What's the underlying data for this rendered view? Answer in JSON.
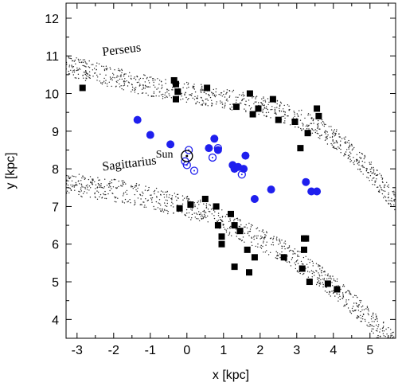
{
  "chart_data": {
    "type": "scatter",
    "title": "",
    "xlabel": "x [kpc]",
    "ylabel": "y [kpc]",
    "xlim": [
      -3.3,
      5.7
    ],
    "ylim": [
      3.5,
      12.4
    ],
    "xticks": [
      -3,
      -2,
      -1,
      0,
      1,
      2,
      3,
      4,
      5
    ],
    "yticks": [
      4,
      5,
      6,
      7,
      8,
      9,
      10,
      11,
      12
    ],
    "grid": false,
    "legend": "none",
    "annotations": [
      {
        "text": "Perseus",
        "x": -2.3,
        "y": 11.0
      },
      {
        "text": "Sagittarius",
        "x": -2.3,
        "y": 7.95
      },
      {
        "text": "Sun",
        "x": -0.85,
        "y": 8.3
      }
    ],
    "sun": {
      "x": 0.0,
      "y": 8.34
    },
    "spiral_arms": [
      {
        "label": "Perseus",
        "centerline": [
          [
            -3.3,
            10.75
          ],
          [
            -2.5,
            10.55
          ],
          [
            -1.5,
            10.3
          ],
          [
            -0.5,
            10.1
          ],
          [
            0.5,
            9.95
          ],
          [
            1.5,
            9.8
          ],
          [
            2.5,
            9.55
          ],
          [
            3.5,
            9.15
          ],
          [
            4.2,
            8.7
          ],
          [
            5.0,
            7.95
          ],
          [
            5.7,
            7.1
          ]
        ],
        "width": 0.55
      },
      {
        "label": "Sagittarius",
        "centerline": [
          [
            -3.3,
            7.6
          ],
          [
            -2.5,
            7.5
          ],
          [
            -1.5,
            7.35
          ],
          [
            -0.5,
            7.1
          ],
          [
            0.5,
            6.85
          ],
          [
            1.5,
            6.35
          ],
          [
            2.5,
            5.9
          ],
          [
            3.5,
            5.25
          ],
          [
            4.2,
            4.7
          ],
          [
            5.0,
            4.0
          ],
          [
            5.7,
            3.3
          ]
        ],
        "width": 0.6
      }
    ],
    "series": [
      {
        "marker": "filled-square",
        "color": "#000000",
        "points": [
          [
            -2.85,
            10.15
          ],
          [
            -0.35,
            10.35
          ],
          [
            -0.3,
            10.25
          ],
          [
            -0.25,
            10.05
          ],
          [
            -0.3,
            9.85
          ],
          [
            0.55,
            10.15
          ],
          [
            1.35,
            9.65
          ],
          [
            1.72,
            10.0
          ],
          [
            1.8,
            9.45
          ],
          [
            1.95,
            9.6
          ],
          [
            2.35,
            9.85
          ],
          [
            2.5,
            9.3
          ],
          [
            2.95,
            9.25
          ],
          [
            3.3,
            8.95
          ],
          [
            3.1,
            8.55
          ],
          [
            3.55,
            9.6
          ],
          [
            3.6,
            9.4
          ],
          [
            0.5,
            7.2
          ],
          [
            0.1,
            7.05
          ],
          [
            -0.2,
            6.95
          ],
          [
            0.8,
            7.0
          ],
          [
            1.2,
            6.8
          ],
          [
            0.85,
            6.5
          ],
          [
            1.3,
            6.5
          ],
          [
            1.45,
            6.35
          ],
          [
            0.95,
            6.2
          ],
          [
            1.65,
            5.85
          ],
          [
            0.95,
            6.0
          ],
          [
            1.85,
            5.65
          ],
          [
            1.3,
            5.4
          ],
          [
            1.7,
            5.25
          ],
          [
            2.65,
            5.65
          ],
          [
            3.2,
            6.15
          ],
          [
            3.25,
            6.15
          ],
          [
            3.2,
            5.85
          ],
          [
            3.15,
            5.35
          ],
          [
            3.35,
            5.0
          ],
          [
            3.85,
            4.95
          ],
          [
            4.1,
            4.8
          ]
        ]
      },
      {
        "marker": "filled-circle",
        "color": "#1f1fee",
        "points": [
          [
            -1.35,
            9.3
          ],
          [
            -1.0,
            8.9
          ],
          [
            -0.45,
            8.65
          ],
          [
            0.6,
            8.55
          ],
          [
            0.75,
            8.8
          ],
          [
            0.85,
            8.5
          ],
          [
            1.25,
            8.1
          ],
          [
            1.3,
            8.0
          ],
          [
            1.4,
            8.05
          ],
          [
            1.55,
            8.0
          ],
          [
            1.6,
            8.35
          ],
          [
            1.85,
            7.2
          ],
          [
            2.3,
            7.45
          ],
          [
            3.25,
            7.65
          ],
          [
            3.4,
            7.4
          ],
          [
            3.55,
            7.4
          ]
        ]
      },
      {
        "marker": "open-circle",
        "color": "#1f1fee",
        "points": [
          [
            0.05,
            8.5
          ],
          [
            -0.05,
            8.2
          ],
          [
            0.0,
            8.1
          ],
          [
            0.2,
            7.95
          ],
          [
            0.7,
            8.3
          ],
          [
            0.85,
            8.55
          ],
          [
            1.5,
            7.85
          ]
        ]
      }
    ]
  }
}
